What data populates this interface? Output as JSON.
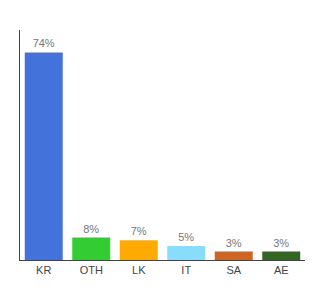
{
  "chart_data": {
    "type": "bar",
    "categories": [
      "KR",
      "OTH",
      "LK",
      "IT",
      "SA",
      "AE"
    ],
    "values": [
      74,
      8,
      7,
      5,
      3,
      3
    ],
    "value_labels": [
      "74%",
      "8%",
      "7%",
      "5%",
      "3%",
      "3%"
    ],
    "data_labels": true,
    "colors": [
      "#4472db",
      "#33cc33",
      "#ffaa00",
      "#88ddff",
      "#cc6622",
      "#336622"
    ],
    "ylim": [
      0,
      82
    ],
    "grid": false,
    "tick_labels": "x"
  }
}
